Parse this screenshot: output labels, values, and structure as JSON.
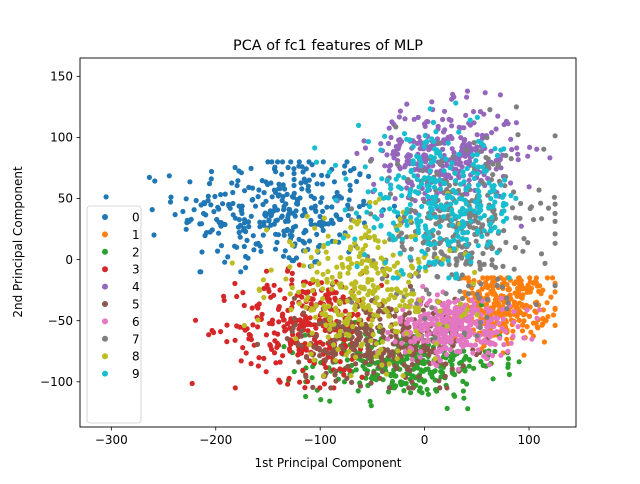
{
  "chart_data": {
    "type": "scatter",
    "title": "PCA of fc1 features of MLP",
    "xlabel": "1st Principal Component",
    "ylabel": "2nd Principal Component",
    "xlim": [
      -330,
      145
    ],
    "ylim": [
      -137,
      165
    ],
    "xticks": [
      -300,
      -200,
      -100,
      0,
      100
    ],
    "yticks": [
      -100,
      -50,
      0,
      50,
      100,
      150
    ],
    "xtick_labels": [
      "−300",
      "−200",
      "−100",
      "0",
      "100"
    ],
    "ytick_labels": [
      "−100",
      "−50",
      "0",
      "50",
      "100",
      "150"
    ],
    "grid": false,
    "legend_position": "center-left",
    "draw_order": [
      "0",
      "1",
      "2",
      "3",
      "4",
      "5",
      "6",
      "7",
      "8",
      "9"
    ],
    "series": [
      {
        "name": "0",
        "color": "#1f77b4",
        "approx_center": [
          -140,
          40
        ],
        "approx_spread": [
          48,
          24
        ],
        "approx_extent": {
          "x": [
            -305,
            20
          ],
          "y": [
            -10,
            80
          ]
        }
      },
      {
        "name": "1",
        "color": "#ff7f0e",
        "approx_center": [
          75,
          -38
        ],
        "approx_spread": [
          22,
          14
        ],
        "approx_extent": {
          "x": [
            20,
            125
          ],
          "y": [
            -85,
            -15
          ]
        }
      },
      {
        "name": "2",
        "color": "#2ca02c",
        "approx_center": [
          -20,
          -85
        ],
        "approx_spread": [
          45,
          14
        ],
        "approx_extent": {
          "x": [
            -185,
            115
          ],
          "y": [
            -122,
            20
          ]
        }
      },
      {
        "name": "3",
        "color": "#d62728",
        "approx_center": [
          -110,
          -55
        ],
        "approx_spread": [
          35,
          22
        ],
        "approx_extent": {
          "x": [
            -240,
            20
          ],
          "y": [
            -105,
            45
          ]
        }
      },
      {
        "name": "4",
        "color": "#9467bd",
        "approx_center": [
          20,
          85
        ],
        "approx_spread": [
          35,
          20
        ],
        "approx_extent": {
          "x": [
            -90,
            120
          ],
          "y": [
            0,
            152
          ]
        }
      },
      {
        "name": "5",
        "color": "#8c564b",
        "approx_center": [
          -40,
          -65
        ],
        "approx_spread": [
          42,
          18
        ],
        "approx_extent": {
          "x": [
            -160,
            60
          ],
          "y": [
            -105,
            115
          ]
        }
      },
      {
        "name": "6",
        "color": "#e377c2",
        "approx_center": [
          30,
          -55
        ],
        "approx_spread": [
          28,
          12
        ],
        "approx_extent": {
          "x": [
            -100,
            110
          ],
          "y": [
            -90,
            -20
          ]
        }
      },
      {
        "name": "7",
        "color": "#7f7f7f",
        "approx_center": [
          35,
          25
        ],
        "approx_spread": [
          40,
          35
        ],
        "approx_extent": {
          "x": [
            -70,
            125
          ],
          "y": [
            -75,
            125
          ]
        }
      },
      {
        "name": "8",
        "color": "#bcbd22",
        "approx_center": [
          -60,
          -25
        ],
        "approx_spread": [
          45,
          28
        ],
        "approx_extent": {
          "x": [
            -240,
            60
          ],
          "y": [
            -95,
            90
          ]
        }
      },
      {
        "name": "9",
        "color": "#17becf",
        "approx_center": [
          15,
          45
        ],
        "approx_spread": [
          40,
          28
        ],
        "approx_extent": {
          "x": [
            -160,
            105
          ],
          "y": [
            -15,
            140
          ]
        }
      }
    ]
  }
}
